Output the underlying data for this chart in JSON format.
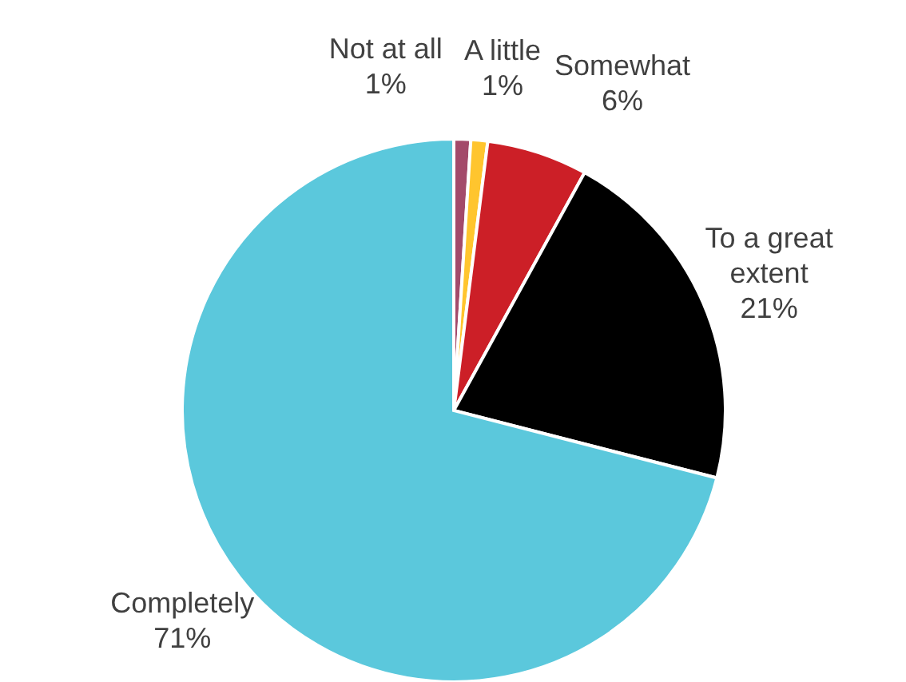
{
  "chart_data": {
    "type": "pie",
    "categories": [
      "Not at all",
      "A little",
      "Somewhat",
      "To a great extent",
      "Completely"
    ],
    "values": [
      1,
      1,
      6,
      21,
      71
    ],
    "value_labels": [
      "1%",
      "1%",
      "6%",
      "21%",
      "71%"
    ],
    "colors": [
      "#a34a6a",
      "#ffc52e",
      "#cc1f27",
      "#000000",
      "#5bc8dc"
    ]
  }
}
